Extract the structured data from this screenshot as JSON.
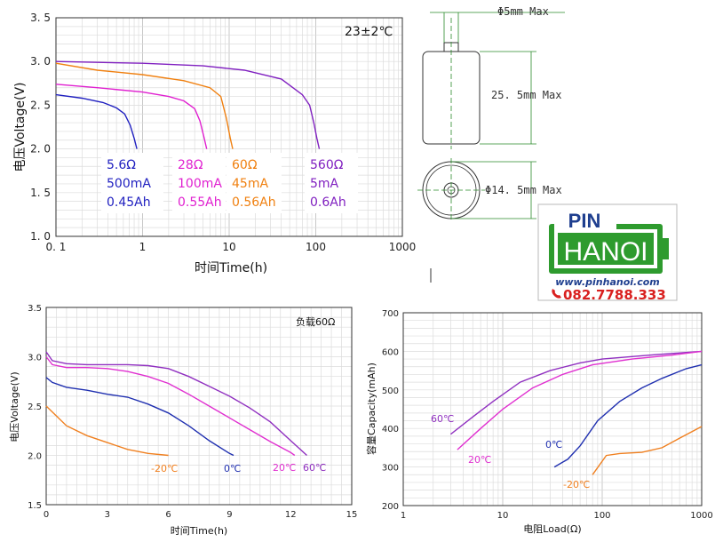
{
  "chart_data": [
    {
      "type": "line",
      "id": "discharge-load",
      "title": "",
      "annotation": "23±2℃",
      "xlabel": "时间Time(h)",
      "ylabel": "电压Voltage(V)",
      "xscale": "log",
      "xlim": [
        0.1,
        1000
      ],
      "ylim": [
        1.0,
        3.5
      ],
      "xticks": [
        "0. 1",
        "1",
        "10",
        "100",
        "1000"
      ],
      "yticks": [
        "1. 0",
        "1. 5",
        "2. 0",
        "2. 5",
        "3. 0",
        "3. 5"
      ],
      "grid": true,
      "series": [
        {
          "name": "5.6Ω",
          "color": "#2020c0",
          "points": [
            [
              0.1,
              2.62
            ],
            [
              0.2,
              2.58
            ],
            [
              0.35,
              2.53
            ],
            [
              0.5,
              2.47
            ],
            [
              0.62,
              2.4
            ],
            [
              0.72,
              2.27
            ],
            [
              0.8,
              2.12
            ],
            [
              0.86,
              2.0
            ]
          ]
        },
        {
          "name": "28Ω",
          "color": "#e020d0",
          "points": [
            [
              0.1,
              2.74
            ],
            [
              0.3,
              2.7
            ],
            [
              1,
              2.65
            ],
            [
              2,
              2.6
            ],
            [
              3,
              2.55
            ],
            [
              4,
              2.46
            ],
            [
              4.6,
              2.32
            ],
            [
              5.1,
              2.14
            ],
            [
              5.5,
              2.0
            ]
          ]
        },
        {
          "name": "60Ω",
          "color": "#f08010",
          "points": [
            [
              0.1,
              2.98
            ],
            [
              0.3,
              2.9
            ],
            [
              1,
              2.85
            ],
            [
              3,
              2.78
            ],
            [
              6,
              2.7
            ],
            [
              8,
              2.6
            ],
            [
              9.3,
              2.35
            ],
            [
              10.3,
              2.12
            ],
            [
              11,
              2.0
            ]
          ]
        },
        {
          "name": "560Ω",
          "color": "#8020c0",
          "points": [
            [
              0.1,
              3.0
            ],
            [
              1,
              2.98
            ],
            [
              5,
              2.95
            ],
            [
              15,
              2.9
            ],
            [
              40,
              2.8
            ],
            [
              70,
              2.62
            ],
            [
              85,
              2.5
            ],
            [
              95,
              2.3
            ],
            [
              103,
              2.12
            ],
            [
              110,
              2.0
            ]
          ]
        }
      ],
      "legend_labels": [
        {
          "id": "56",
          "color": "#2020c0",
          "lines": [
            "5.6Ω",
            "500mA",
            "0.45Ah"
          ]
        },
        {
          "id": "28",
          "color": "#e020d0",
          "lines": [
            "28Ω",
            "100mA",
            "0.55Ah"
          ]
        },
        {
          "id": "60",
          "color": "#f08010",
          "lines": [
            "60Ω",
            "45mA",
            "0.56Ah"
          ]
        },
        {
          "id": "560",
          "color": "#8020c0",
          "lines": [
            "560Ω",
            "5mA",
            "0.6Ah"
          ]
        }
      ]
    },
    {
      "type": "line",
      "id": "discharge-temperature",
      "title": "",
      "annotation": "负载60Ω",
      "xlabel": "时间Time(h)",
      "ylabel": "电压Voltage(V)",
      "xlim": [
        0,
        15
      ],
      "ylim": [
        1.5,
        3.5
      ],
      "xticks": [
        "0",
        "3",
        "6",
        "9",
        "12",
        "15"
      ],
      "yticks": [
        "1.5",
        "2.0",
        "2.5",
        "3.0",
        "3.5"
      ],
      "grid": true,
      "series": [
        {
          "name": "-20℃",
          "color": "#f08020",
          "points": [
            [
              0,
              2.5
            ],
            [
              0.5,
              2.4
            ],
            [
              1,
              2.3
            ],
            [
              2,
              2.2
            ],
            [
              3,
              2.13
            ],
            [
              4,
              2.06
            ],
            [
              5,
              2.02
            ],
            [
              6,
              2.0
            ]
          ]
        },
        {
          "name": "0℃",
          "color": "#2030b0",
          "points": [
            [
              0,
              2.79
            ],
            [
              0.3,
              2.74
            ],
            [
              1,
              2.69
            ],
            [
              2,
              2.66
            ],
            [
              3,
              2.62
            ],
            [
              4,
              2.59
            ],
            [
              5,
              2.52
            ],
            [
              6,
              2.43
            ],
            [
              7,
              2.3
            ],
            [
              8,
              2.15
            ],
            [
              9,
              2.02
            ],
            [
              9.2,
              2.0
            ]
          ]
        },
        {
          "name": "20℃",
          "color": "#e030d0",
          "points": [
            [
              0,
              3.0
            ],
            [
              0.3,
              2.92
            ],
            [
              1,
              2.89
            ],
            [
              2,
              2.89
            ],
            [
              3,
              2.88
            ],
            [
              4,
              2.85
            ],
            [
              5,
              2.8
            ],
            [
              6,
              2.73
            ],
            [
              7,
              2.62
            ],
            [
              8,
              2.5
            ],
            [
              9,
              2.38
            ],
            [
              10,
              2.26
            ],
            [
              11,
              2.14
            ],
            [
              12,
              2.03
            ],
            [
              12.2,
              2.0
            ]
          ]
        },
        {
          "name": "60℃",
          "color": "#9030c0",
          "points": [
            [
              0,
              3.05
            ],
            [
              0.3,
              2.96
            ],
            [
              1,
              2.93
            ],
            [
              2,
              2.92
            ],
            [
              3,
              2.92
            ],
            [
              4,
              2.92
            ],
            [
              5,
              2.91
            ],
            [
              6,
              2.88
            ],
            [
              7,
              2.8
            ],
            [
              8,
              2.7
            ],
            [
              9,
              2.6
            ],
            [
              10,
              2.48
            ],
            [
              11,
              2.34
            ],
            [
              12,
              2.15
            ],
            [
              12.8,
              2.0
            ]
          ]
        }
      ]
    },
    {
      "type": "line",
      "id": "capacity-load",
      "title": "",
      "xlabel": "电阻Load(Ω)",
      "ylabel": "容量Capacity(mAh)",
      "xscale": "log",
      "xlim": [
        1,
        1000
      ],
      "ylim": [
        200,
        700
      ],
      "xticks": [
        "1",
        "10",
        "100",
        "1000"
      ],
      "yticks": [
        "200",
        "300",
        "400",
        "500",
        "600",
        "700"
      ],
      "grid": true,
      "series": [
        {
          "name": "60℃",
          "color": "#9030c0",
          "points": [
            [
              3,
              385
            ],
            [
              5,
              430
            ],
            [
              8,
              470
            ],
            [
              15,
              520
            ],
            [
              30,
              550
            ],
            [
              60,
              570
            ],
            [
              100,
              580
            ],
            [
              300,
              590
            ],
            [
              1000,
              600
            ]
          ]
        },
        {
          "name": "20℃",
          "color": "#e030d0",
          "points": [
            [
              3.5,
              345
            ],
            [
              6,
              400
            ],
            [
              10,
              450
            ],
            [
              20,
              505
            ],
            [
              40,
              540
            ],
            [
              80,
              565
            ],
            [
              200,
              580
            ],
            [
              500,
              590
            ],
            [
              1000,
              600
            ]
          ]
        },
        {
          "name": "0℃",
          "color": "#2030b0",
          "points": [
            [
              33,
              300
            ],
            [
              45,
              320
            ],
            [
              60,
              355
            ],
            [
              90,
              420
            ],
            [
              150,
              470
            ],
            [
              250,
              505
            ],
            [
              400,
              530
            ],
            [
              700,
              555
            ],
            [
              1000,
              565
            ]
          ]
        },
        {
          "name": "-20℃",
          "color": "#f08020",
          "points": [
            [
              80,
              280
            ],
            [
              110,
              330
            ],
            [
              150,
              335
            ],
            [
              250,
              338
            ],
            [
              400,
              350
            ],
            [
              600,
              375
            ],
            [
              1000,
              405
            ]
          ]
        }
      ]
    }
  ],
  "dimensions": {
    "diameter_top": "Φ5mm Max",
    "height": "25. 5mm Max",
    "diameter_body": "Φ14. 5mm Max"
  },
  "logo": {
    "brand_top": "PIN",
    "brand_main": "HANOI",
    "website": "www.pinhanoi.com",
    "phone": "082.7788.333",
    "colors": {
      "green": "#2e9b2e",
      "blue": "#1f3f8f",
      "red": "#d9201f"
    }
  },
  "icons": {
    "phone": "phone-icon"
  }
}
